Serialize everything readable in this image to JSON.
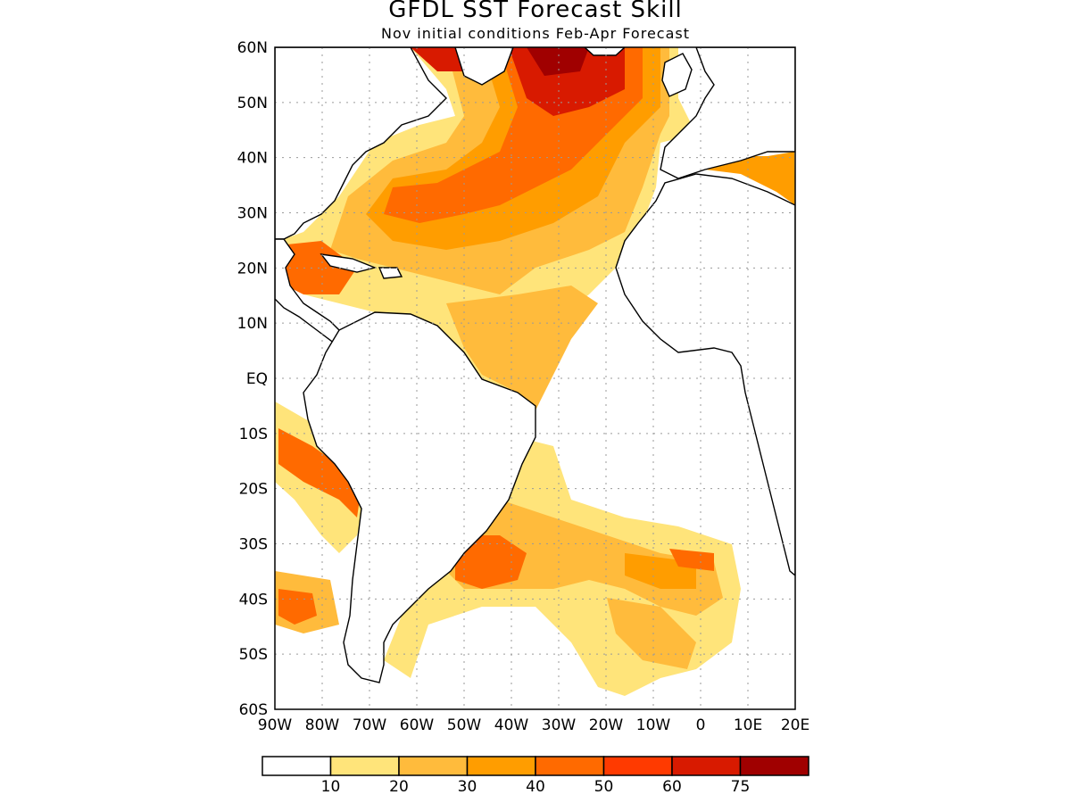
{
  "title": "GFDL SST Forecast Skill",
  "subtitle": "Nov initial conditions  Feb-Apr Forecast",
  "lat_labels": [
    "60N",
    "50N",
    "40N",
    "30N",
    "20N",
    "10N",
    "EQ",
    "10S",
    "20S",
    "30S",
    "40S",
    "50S",
    "60S"
  ],
  "lon_labels": [
    "90W",
    "80W",
    "70W",
    "60W",
    "50W",
    "40W",
    "30W",
    "20W",
    "10W",
    "0",
    "10E",
    "20E"
  ],
  "colorbar": {
    "colors": [
      "#ffffff",
      "#ffe47a",
      "#ffbb3c",
      "#ff9d00",
      "#ff6a00",
      "#ff3a00",
      "#d81a00",
      "#a00000"
    ],
    "labels": [
      "10",
      "20",
      "30",
      "40",
      "50",
      "60",
      "75"
    ]
  },
  "colors": {
    "land_outline": "#000000",
    "grid": "#9a9a9a"
  }
}
